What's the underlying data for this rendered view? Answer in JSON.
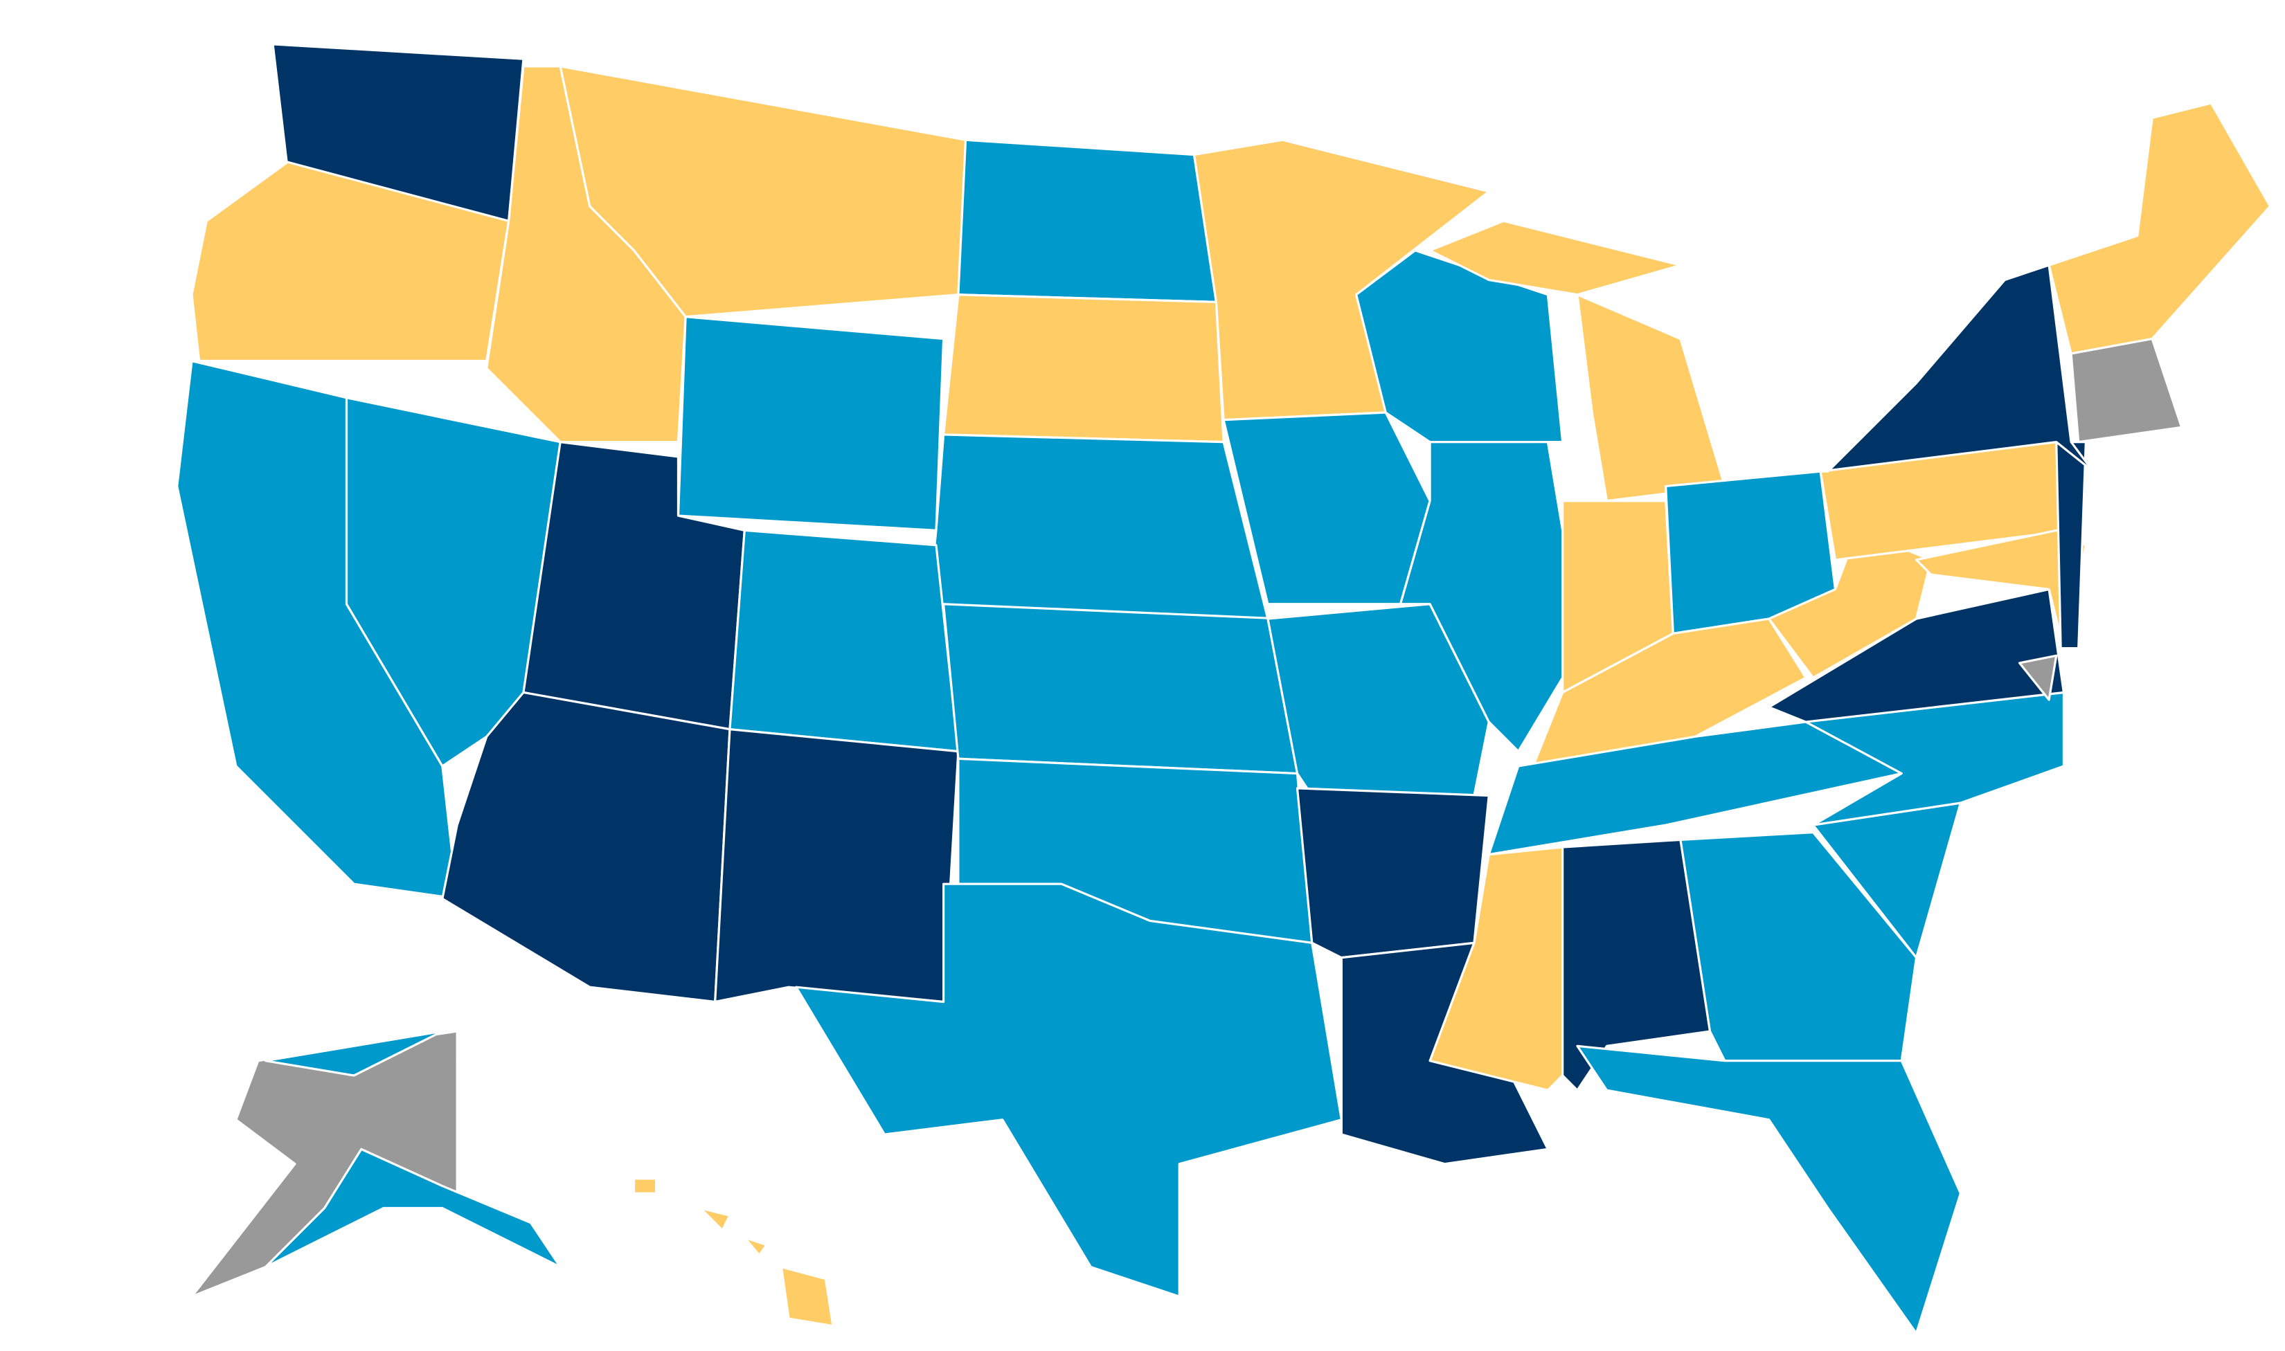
{
  "map": {
    "palette": [
      "#ffcc66",
      "#0099cc",
      "#003366",
      "#999999"
    ]
  }
}
